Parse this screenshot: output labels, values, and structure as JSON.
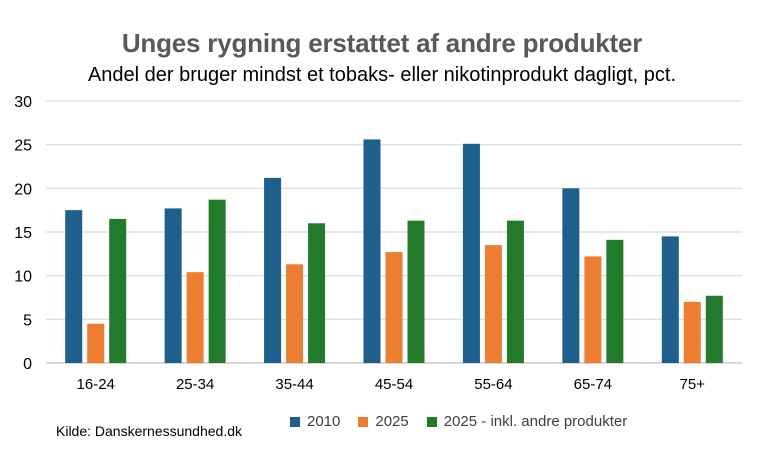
{
  "chart_data": {
    "type": "bar",
    "title": "Unges rygning erstattet af andre produkter",
    "subtitle": "Andel der bruger mindst et tobaks- eller nikotinprodukt dagligt, pct.",
    "categories": [
      "16-24",
      "25-34",
      "35-44",
      "45-54",
      "55-64",
      "65-74",
      "75+"
    ],
    "series": [
      {
        "name": "2010",
        "color": "#1f5f8b",
        "values": [
          17.5,
          17.7,
          21.2,
          25.6,
          25.1,
          20.0,
          14.5
        ]
      },
      {
        "name": "2025",
        "color": "#ed7d31",
        "values": [
          4.5,
          10.4,
          11.3,
          12.7,
          13.5,
          12.2,
          7.0
        ]
      },
      {
        "name": "2025 - inkl. andre produkter",
        "color": "#237a2a",
        "values": [
          16.5,
          18.7,
          16.0,
          16.3,
          16.3,
          14.1,
          7.7
        ]
      }
    ],
    "yticks": [
      "0",
      "5",
      "10",
      "15",
      "20",
      "25",
      "30"
    ],
    "ylim": [
      0,
      30
    ],
    "grid": true,
    "legend_position": "bottom"
  },
  "source": "Kilde: Danskernessundhed.dk"
}
